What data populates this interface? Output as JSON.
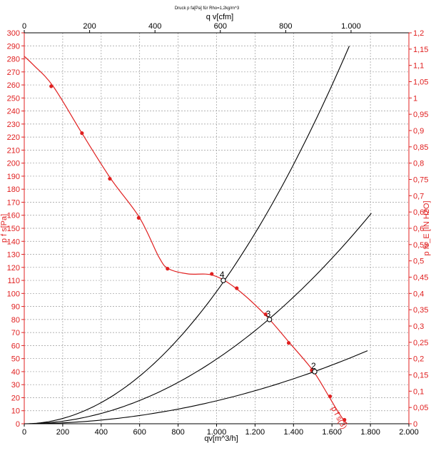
{
  "chart_data": {
    "type": "line",
    "title": "Druck p fa[Pa] für Rho=1,2kg/m^3",
    "top_axis_label": "q v[cfm]",
    "xlabel": "qv[m^3/h]",
    "ylabel_left": "p f s[Pa]",
    "ylabel_right": "p fs_E [IN H2O]",
    "xlim": [
      0,
      2000
    ],
    "ylim": [
      0,
      300
    ],
    "top_xlim": [
      0,
      1177
    ],
    "right_ylim": [
      0,
      1.2
    ],
    "x_ticks": [
      "0",
      "200",
      "400",
      "600",
      "800",
      "1.000",
      "1.200",
      "1.400",
      "1.600",
      "1.800",
      "2.000"
    ],
    "top_ticks": [
      "0",
      "200",
      "400",
      "600",
      "800",
      "1.000"
    ],
    "top_tick_values": [
      0,
      200,
      400,
      600,
      800,
      1000
    ],
    "y_ticks": [
      "0",
      "10",
      "20",
      "30",
      "40",
      "50",
      "60",
      "70",
      "80",
      "90",
      "100",
      "110",
      "120",
      "130",
      "140",
      "150",
      "160",
      "170",
      "180",
      "190",
      "200",
      "210",
      "220",
      "230",
      "240",
      "250",
      "260",
      "270",
      "280",
      "290",
      "300"
    ],
    "right_ticks": [
      "0",
      "0,05",
      "0,1",
      "0,15",
      "0,2",
      "0,25",
      "0,3",
      "0,35",
      "0,4",
      "0,45",
      "0,5",
      "0,55",
      "0,6",
      "0,65",
      "0,7",
      "0,75",
      "0,8",
      "0,85",
      "0,9",
      "0,95",
      "1",
      "1,05",
      "1,1",
      "1,15",
      "1,2"
    ],
    "grid": true,
    "fan_curve": {
      "name": "p f s(3)",
      "color": "#e02020",
      "x": [
        0,
        50,
        150,
        300,
        450,
        600,
        700,
        750,
        850,
        980,
        1100,
        1250,
        1380,
        1500,
        1580,
        1620,
        1660,
        1680
      ],
      "y": [
        282,
        275,
        259,
        223,
        188,
        158,
        128,
        119,
        115,
        114,
        104,
        84,
        62,
        41,
        22,
        12,
        3,
        0
      ],
      "markers_x": [
        140,
        300,
        445,
        595,
        745,
        975,
        1105,
        1255,
        1375,
        1495,
        1590,
        1665
      ],
      "markers_y": [
        259,
        223,
        188,
        158,
        119,
        115,
        104,
        84,
        62,
        41,
        21,
        3
      ]
    },
    "system_curves": [
      {
        "label": "4",
        "k": 0.0001015,
        "x_max": 1690
      },
      {
        "label": "3",
        "k": 4.96e-05,
        "x_max": 1805
      },
      {
        "label": "2",
        "k": 1.76e-05,
        "x_max": 1785
      }
    ],
    "operating_points": [
      {
        "label": "4",
        "x": 1035,
        "y": 110
      },
      {
        "label": "3",
        "x": 1275,
        "y": 80
      },
      {
        "label": "2",
        "x": 1510,
        "y": 40
      }
    ]
  }
}
